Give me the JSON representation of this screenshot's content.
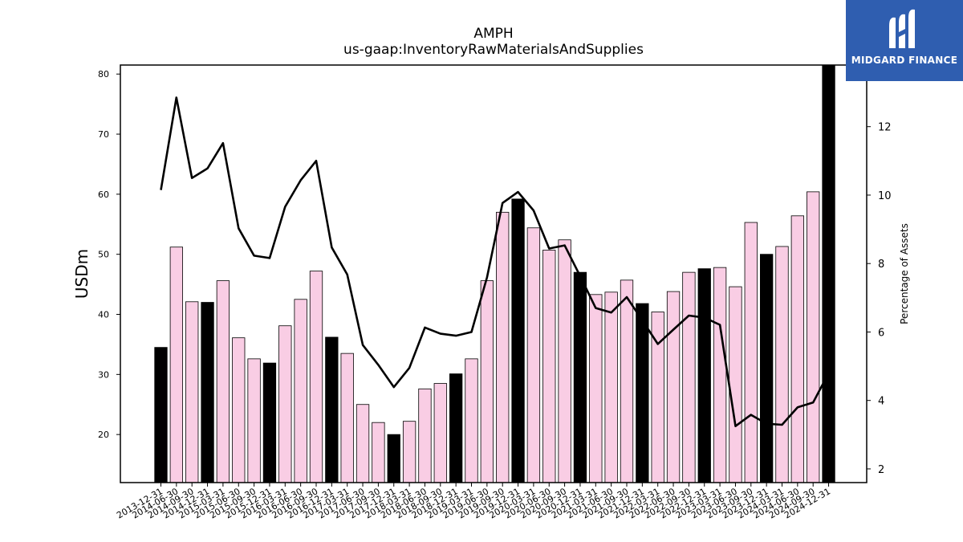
{
  "chart_data": {
    "type": "bar",
    "title": "AMPH",
    "subtitle": "us-gaap:InventoryRawMaterialsAndSupplies",
    "ylabel": "USDm",
    "y2label": "Percentage of Assets",
    "ylim": [
      12,
      81.5
    ],
    "y2lim": [
      1.6,
      13.8
    ],
    "yticks": [
      20,
      30,
      40,
      50,
      60,
      70,
      80
    ],
    "y2ticks": [
      2,
      4,
      6,
      8,
      10,
      12
    ],
    "categories": [
      "2013-12-31",
      "2014-06-30",
      "2014-09-30",
      "2014-12-31",
      "2015-03-31",
      "2015-06-30",
      "2015-09-30",
      "2015-12-31",
      "2016-03-31",
      "2016-06-30",
      "2016-09-30",
      "2016-12-31",
      "2017-03-31",
      "2017-06-30",
      "2017-09-30",
      "2017-12-31",
      "2018-03-31",
      "2018-06-30",
      "2018-09-30",
      "2018-12-31",
      "2019-03-31",
      "2019-06-30",
      "2019-09-30",
      "2019-12-31",
      "2020-03-31",
      "2020-06-30",
      "2020-09-30",
      "2020-12-31",
      "2021-03-31",
      "2021-06-30",
      "2021-09-30",
      "2021-12-31",
      "2022-03-31",
      "2022-06-30",
      "2022-09-30",
      "2022-12-31",
      "2023-03-31",
      "2023-06-30",
      "2023-09-30",
      "2023-12-31",
      "2024-03-31",
      "2024-06-30",
      "2024-09-30",
      "2024-12-31"
    ],
    "series": [
      {
        "type": "bar",
        "axis": "left",
        "values": [
          34.5,
          51.2,
          42.1,
          42.0,
          45.6,
          36.1,
          32.6,
          31.9,
          38.1,
          42.5,
          47.2,
          36.2,
          33.5,
          25.0,
          22.0,
          20.0,
          22.2,
          27.6,
          28.5,
          30.1,
          32.6,
          45.6,
          57.0,
          59.2,
          54.4,
          50.7,
          52.4,
          47.0,
          43.3,
          43.7,
          45.7,
          41.8,
          40.4,
          43.8,
          47.0,
          47.6,
          47.8,
          44.6,
          55.3,
          50.0,
          51.3,
          56.4,
          60.4,
          81.5
        ],
        "annual_flags": [
          1,
          0,
          0,
          1,
          0,
          0,
          0,
          1,
          0,
          0,
          0,
          1,
          0,
          0,
          0,
          1,
          0,
          0,
          0,
          1,
          0,
          0,
          0,
          1,
          0,
          0,
          0,
          1,
          0,
          0,
          0,
          1,
          0,
          0,
          0,
          1,
          0,
          0,
          0,
          1,
          0,
          0,
          0,
          1
        ],
        "colors": {
          "quarterly": "#f9cde4",
          "annual": "#000000"
        }
      },
      {
        "type": "line",
        "axis": "right",
        "values": [
          10.15,
          12.85,
          10.5,
          10.78,
          11.52,
          9.03,
          8.23,
          8.16,
          9.66,
          10.43,
          11.0,
          8.47,
          7.68,
          5.62,
          5.04,
          4.39,
          4.95,
          6.13,
          5.95,
          5.89,
          6.0,
          7.6,
          9.77,
          10.09,
          9.55,
          8.44,
          8.53,
          7.63,
          6.7,
          6.57,
          7.02,
          6.34,
          5.65,
          6.07,
          6.48,
          6.42,
          6.21,
          3.25,
          3.58,
          3.32,
          3.29,
          3.8,
          3.94,
          4.8
        ],
        "color": "#000000"
      }
    ]
  },
  "logo": {
    "text": "MIDGARD FINANCE"
  }
}
